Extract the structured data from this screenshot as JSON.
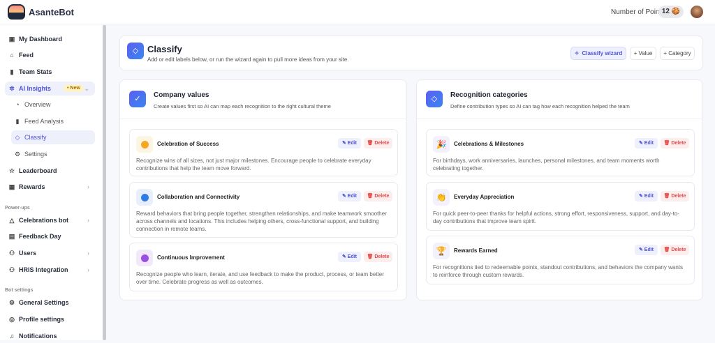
{
  "app": {
    "name": "AsanteBot",
    "points_label": "Number of Points",
    "points_value": "12 🍪"
  },
  "sidebar": {
    "items": [
      {
        "label": "My Dashboard",
        "icon": "dashboard-icon"
      },
      {
        "label": "Feed",
        "icon": "home-icon"
      },
      {
        "label": "Team Stats",
        "icon": "bar-chart-icon"
      },
      {
        "label": "AI Insights",
        "icon": "sparkle-icon",
        "badge": "• New"
      },
      {
        "label": "Overview",
        "icon": "pie-icon"
      },
      {
        "label": "Feed Analysis",
        "icon": "bar-chart-icon"
      },
      {
        "label": "Classify",
        "icon": "tag-icon"
      },
      {
        "label": "Settings",
        "icon": "gear-icon"
      },
      {
        "label": "Leaderboard",
        "icon": "star-icon"
      },
      {
        "label": "Rewards",
        "icon": "gift-icon"
      },
      {
        "label": "Celebrations bot",
        "icon": "cake-icon"
      },
      {
        "label": "Feedback Day",
        "icon": "calendar-icon"
      },
      {
        "label": "Users",
        "icon": "users-icon"
      },
      {
        "label": "HRIS Integration",
        "icon": "users-icon"
      },
      {
        "label": "General Settings",
        "icon": "gear-icon"
      },
      {
        "label": "Profile settings",
        "icon": "user-circle-icon"
      },
      {
        "label": "Notifications",
        "icon": "bell-icon"
      }
    ],
    "sections": [
      "Power-ups",
      "Bot settings"
    ]
  },
  "page": {
    "title": "Classify",
    "subtitle": "Add or edit labels below, or run the wizard again to pull more ideas from your site.",
    "buttons": {
      "wizard": "Classify wizard",
      "value": "+ Value",
      "category": "+ Category"
    }
  },
  "values": {
    "title": "Company values",
    "subtitle": "Create values first so AI can map each recognition to the right cultural theme",
    "items": [
      {
        "name": "Celebration of Success",
        "color": "#f5a623",
        "bg": "#fdf4e2",
        "text": "Recognize wins of all sizes, not just major milestones. Encourage people to celebrate everyday contributions that help the team move forward."
      },
      {
        "name": "Collaboration and Connectivity",
        "color": "#2f7de1",
        "bg": "#e6effb",
        "text": "Reward behaviors that bring people together, strengthen relationships, and make teamwork smoother across channels and locations. This includes helping others, cross-functional support, and building connection in remote teams."
      },
      {
        "name": "Continuous Improvement",
        "color": "#9b4fe0",
        "bg": "#f1e8fb",
        "text": "Recognize people who learn, iterate, and use feedback to make the product, process, or team better over time. Celebrate progress as well as outcomes."
      }
    ]
  },
  "categories": {
    "title": "Recognition categories",
    "subtitle": "Define contribution types so AI can tag how each recognition helped the team",
    "items": [
      {
        "name": "Celebrations & Milestones",
        "emoji": "🎉",
        "text": "For birthdays, work anniversaries, launches, personal milestones, and team moments worth celebrating together."
      },
      {
        "name": "Everyday Appreciation",
        "emoji": "👏",
        "text": "For quick peer-to-peer thanks for helpful actions, strong effort, responsiveness, support, and day-to-day contributions that improve team spirit."
      },
      {
        "name": "Rewards Earned",
        "emoji": "🏆",
        "text": "For recognitions tied to redeemable points, standout contributions, and behaviors the company wants to reinforce through custom rewards."
      }
    ]
  },
  "actions": {
    "edit": "✎ Edit",
    "delete": "🗑 Delete"
  }
}
